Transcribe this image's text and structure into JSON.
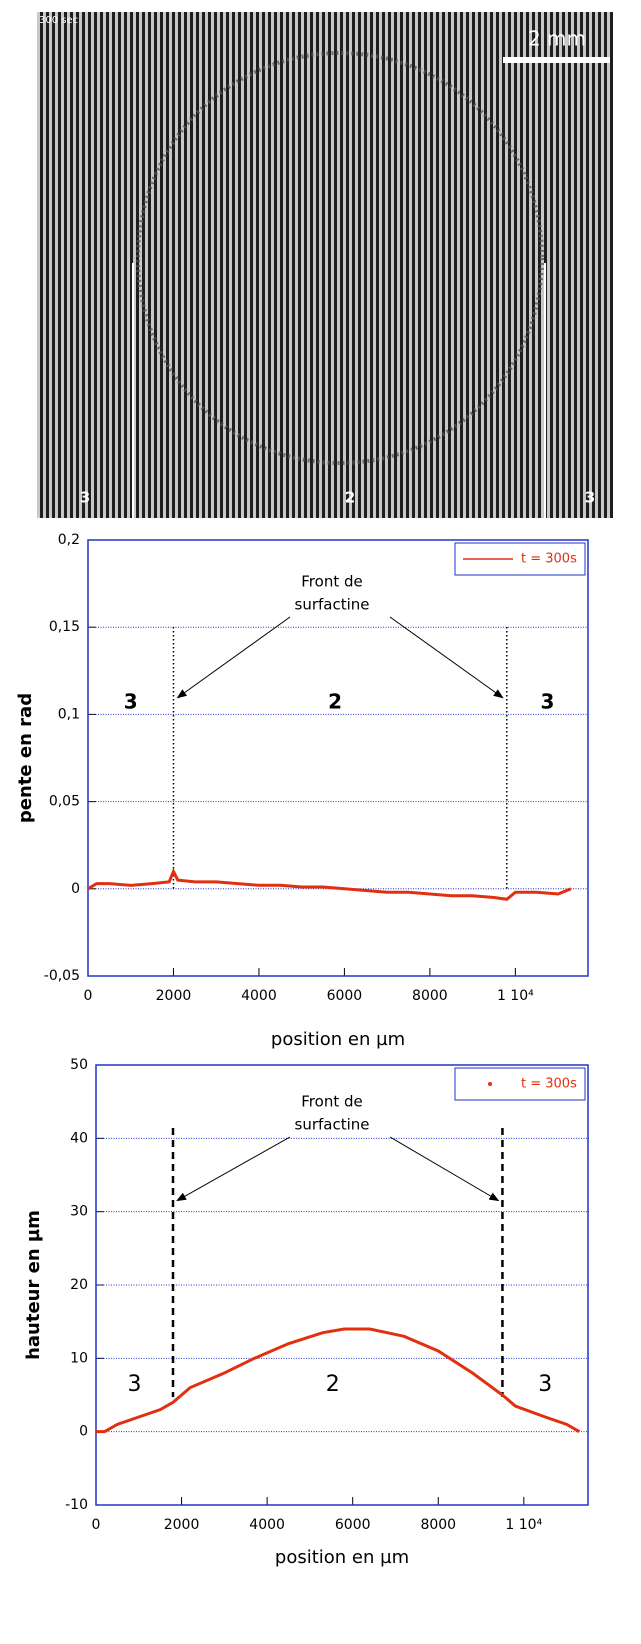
{
  "image": {
    "timestamp": "300 sec",
    "scale": "2 mm",
    "regions": [
      "3",
      "2",
      "3"
    ]
  },
  "chart_data": [
    {
      "type": "line",
      "ylabel": "pente en rad",
      "xlabel": "position en µm",
      "annotation": [
        "Front de",
        "surfactine"
      ],
      "regions": [
        "3",
        "2",
        "3"
      ],
      "front_x": [
        2000,
        9800
      ],
      "xlim": [
        0,
        11700
      ],
      "ylim": [
        -0.05,
        0.2
      ],
      "xticks": [
        0,
        2000,
        4000,
        6000,
        8000,
        {
          "value": 10000,
          "label": "1 10⁴"
        }
      ],
      "yticks": [
        {
          "value": -0.05,
          "label": "-0,05"
        },
        0,
        {
          "value": 0.05,
          "label": "0,05"
        },
        {
          "value": 0.1,
          "label": "0,1"
        },
        {
          "value": 0.15,
          "label": "0,15"
        },
        {
          "value": 0.2,
          "label": "0,2"
        }
      ],
      "grid": true,
      "legend": "upper right",
      "series": [
        {
          "name": "t = 300s",
          "color": "#e03010",
          "x": [
            0,
            200,
            500,
            1000,
            1500,
            1900,
            2000,
            2100,
            2500,
            3000,
            3500,
            4000,
            4500,
            5000,
            5500,
            6000,
            6500,
            7000,
            7500,
            8000,
            8500,
            9000,
            9500,
            9800,
            10000,
            10500,
            11000,
            11300
          ],
          "values": [
            0,
            0.003,
            0.003,
            0.002,
            0.003,
            0.004,
            0.01,
            0.005,
            0.004,
            0.004,
            0.003,
            0.002,
            0.002,
            0.001,
            0.001,
            0.0,
            -0.001,
            -0.002,
            -0.002,
            -0.003,
            -0.004,
            -0.004,
            -0.005,
            -0.006,
            -0.002,
            -0.002,
            -0.003,
            0
          ]
        }
      ]
    },
    {
      "type": "line",
      "ylabel": "hauteur en µm",
      "xlabel": "position en µm",
      "annotation": [
        "Front de",
        "surfactine"
      ],
      "regions": [
        "3",
        "2",
        "3"
      ],
      "front_x": [
        1800,
        9500
      ],
      "xlim": [
        0,
        11500
      ],
      "ylim": [
        -10,
        50
      ],
      "xticks": [
        0,
        2000,
        4000,
        6000,
        8000,
        {
          "value": 10000,
          "label": "1 10⁴"
        }
      ],
      "yticks": [
        -10,
        0,
        10,
        20,
        30,
        40,
        50
      ],
      "grid": true,
      "legend": "upper right",
      "series": [
        {
          "name": "t = 300s",
          "color": "#e03010",
          "x": [
            0,
            200,
            500,
            1000,
            1500,
            1800,
            2200,
            3000,
            3700,
            4500,
            5300,
            5800,
            6400,
            7200,
            8000,
            8800,
            9500,
            9800,
            10500,
            11000,
            11300
          ],
          "values": [
            0,
            0,
            1,
            2,
            3,
            4,
            6,
            8,
            10,
            12,
            13.5,
            14,
            14,
            13,
            11,
            8,
            5,
            3.5,
            2,
            1,
            0
          ]
        }
      ]
    }
  ]
}
